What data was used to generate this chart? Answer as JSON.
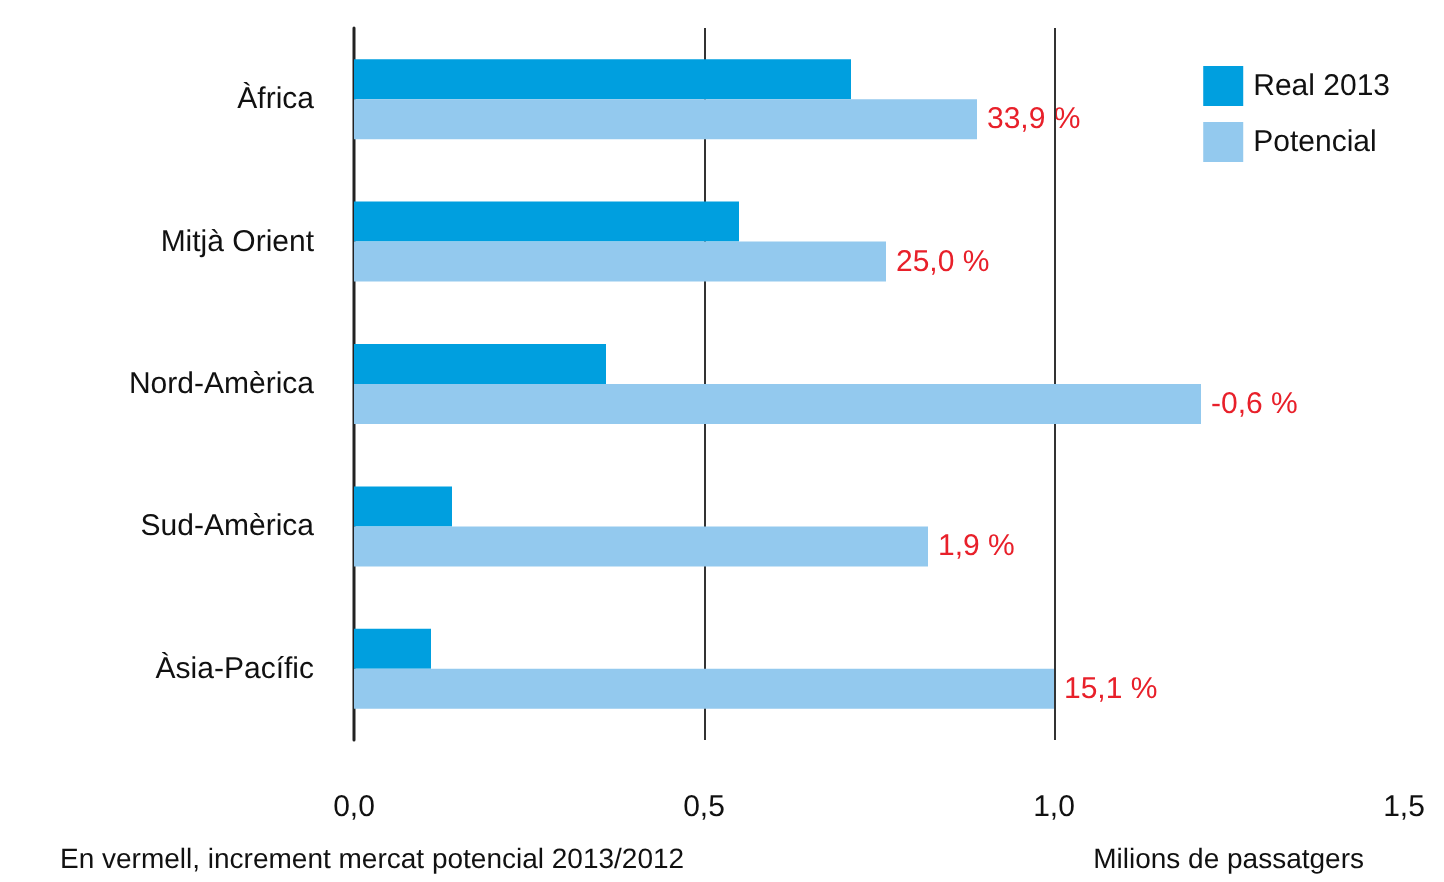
{
  "chart_data": {
    "type": "bar",
    "orientation": "horizontal",
    "xlabel": "Milions de passatgers",
    "annotations": [
      "En vermell, increment mercat potencial 2013/2012",
      {
        "text": "33,9 %",
        "x": 0.89,
        "y": "Àfrica"
      },
      {
        "text": "25,0 %",
        "x": 0.76,
        "y": "Mitjà Orient"
      },
      {
        "text": "-0,6 %",
        "x": 1.21,
        "y": "Nord-Amèrica"
      },
      {
        "text": "1,9 %",
        "x": 0.82,
        "y": "Sud-Amèrica"
      },
      {
        "text": "15,1 %",
        "x": 1.0,
        "y": "Àsia-Pacífic"
      }
    ],
    "categories": [
      "Àfrica",
      "Mitjà Orient",
      "Nord-Amèrica",
      "Sud-Amèrica",
      "Àsia-Pacífic"
    ],
    "series": [
      {
        "name": "Real 2013",
        "color": "#009fdf",
        "values": [
          0.71,
          0.55,
          0.36,
          0.14,
          0.11
        ]
      },
      {
        "name": "Potencial",
        "color": "#93c9ee",
        "values": [
          0.89,
          0.76,
          1.21,
          0.82,
          1.0
        ]
      }
    ],
    "xlim": [
      0,
      1.5
    ],
    "xticks": [
      {
        "value": 0,
        "label": "0,0"
      },
      {
        "value": 0.5,
        "label": "0,5"
      },
      {
        "value": 1,
        "label": "1,0"
      },
      {
        "value": 1.5,
        "label": "1,5"
      }
    ],
    "grid": "x",
    "legend": "top right"
  }
}
